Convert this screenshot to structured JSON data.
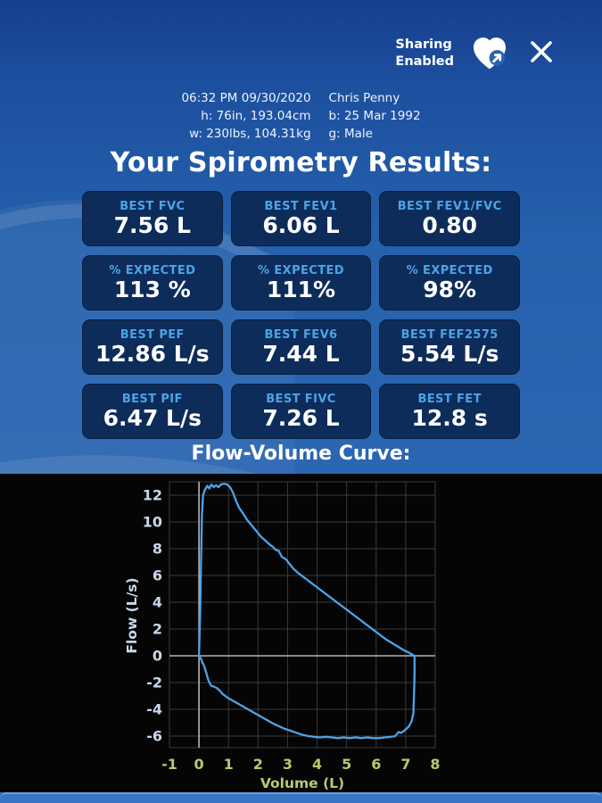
{
  "header": {
    "sharing_line1": "Sharing",
    "sharing_line2": "Enabled"
  },
  "patient": {
    "datetime": "06:32 PM 09/30/2020",
    "height": "h: 76in, 193.04cm",
    "weight": "w: 230lbs, 104.31kg",
    "name": "Chris Penny",
    "birth": "b: 25 Mar 1992",
    "gender": "g: Male"
  },
  "title": "Your Spirometry Results:",
  "results": [
    {
      "label": "BEST FVC",
      "value": "7.56 L"
    },
    {
      "label": "BEST FEV1",
      "value": "6.06 L"
    },
    {
      "label": "BEST FEV1/FVC",
      "value": "0.80"
    },
    {
      "label": "% EXPECTED",
      "value": "113 %"
    },
    {
      "label": "% EXPECTED",
      "value": "111%"
    },
    {
      "label": "% EXPECTED",
      "value": "98%"
    },
    {
      "label": "BEST PEF",
      "value": "12.86 L/s"
    },
    {
      "label": "BEST FEV6",
      "value": "7.44 L"
    },
    {
      "label": "BEST FEF2575",
      "value": "5.54 L/s"
    },
    {
      "label": "BEST PIF",
      "value": "6.47 L/s"
    },
    {
      "label": "BEST FIVC",
      "value": "7.26 L"
    },
    {
      "label": "BEST FET",
      "value": "12.8 s"
    }
  ],
  "chart_section_title": "Flow-Volume Curve:",
  "colors": {
    "background_blue": "#2b67b2",
    "card_background": "#0d2c5a",
    "card_label_blue": "#4aa4e9",
    "white": "#ffffff"
  },
  "chart_data": {
    "type": "line",
    "title": "Flow-Volume Curve",
    "xlabel": "Volume (L)",
    "ylabel": "Flow (L/s)",
    "xlim": [
      -1,
      8
    ],
    "ylim": [
      -6.9,
      13.1
    ],
    "xticks": [
      -1,
      0,
      1,
      2,
      3,
      4,
      5,
      6,
      7,
      8
    ],
    "yticks": [
      12,
      10,
      8,
      6,
      4,
      2,
      0,
      -2,
      -4,
      -6
    ],
    "grid": true,
    "legend": "none",
    "colors": {
      "background": "#050505",
      "grid": "#3a3a3a",
      "zero_axis": "#b5b5b5",
      "curve": "#4da3e8",
      "x_ticks": "#b5cb6e",
      "y_ticks": "#c8d7ec"
    },
    "series": [
      {
        "name": "flow-volume-loop",
        "points": [
          [
            0,
            0
          ],
          [
            0.04,
            3
          ],
          [
            0.07,
            7
          ],
          [
            0.1,
            10.5
          ],
          [
            0.14,
            12.0
          ],
          [
            0.2,
            12.4
          ],
          [
            0.28,
            12.7
          ],
          [
            0.35,
            12.5
          ],
          [
            0.42,
            12.8
          ],
          [
            0.5,
            12.6
          ],
          [
            0.58,
            12.75
          ],
          [
            0.66,
            12.6
          ],
          [
            0.74,
            12.8
          ],
          [
            0.85,
            12.86
          ],
          [
            0.95,
            12.8
          ],
          [
            1.05,
            12.6
          ],
          [
            1.15,
            12.2
          ],
          [
            1.25,
            11.6
          ],
          [
            1.35,
            11.1
          ],
          [
            1.5,
            10.6
          ],
          [
            1.65,
            10.1
          ],
          [
            1.8,
            9.7
          ],
          [
            1.95,
            9.3
          ],
          [
            2.1,
            8.9
          ],
          [
            2.25,
            8.6
          ],
          [
            2.4,
            8.3
          ],
          [
            2.5,
            8.15
          ],
          [
            2.6,
            7.9
          ],
          [
            2.7,
            7.85
          ],
          [
            2.8,
            7.4
          ],
          [
            2.95,
            7.2
          ],
          [
            3.05,
            6.9
          ],
          [
            3.2,
            6.5
          ],
          [
            3.35,
            6.2
          ],
          [
            3.5,
            5.95
          ],
          [
            3.65,
            5.7
          ],
          [
            3.8,
            5.45
          ],
          [
            3.95,
            5.2
          ],
          [
            4.1,
            4.95
          ],
          [
            4.25,
            4.7
          ],
          [
            4.4,
            4.45
          ],
          [
            4.55,
            4.2
          ],
          [
            4.7,
            3.95
          ],
          [
            4.85,
            3.7
          ],
          [
            5.0,
            3.45
          ],
          [
            5.15,
            3.2
          ],
          [
            5.3,
            2.95
          ],
          [
            5.45,
            2.7
          ],
          [
            5.6,
            2.45
          ],
          [
            5.75,
            2.2
          ],
          [
            5.9,
            1.95
          ],
          [
            6.05,
            1.7
          ],
          [
            6.2,
            1.45
          ],
          [
            6.35,
            1.2
          ],
          [
            6.5,
            1.0
          ],
          [
            6.65,
            0.8
          ],
          [
            6.8,
            0.6
          ],
          [
            6.95,
            0.4
          ],
          [
            7.1,
            0.25
          ],
          [
            7.2,
            0.12
          ],
          [
            7.3,
            0
          ],
          [
            7.3,
            -1.5
          ],
          [
            7.28,
            -3.0
          ],
          [
            7.26,
            -4.3
          ],
          [
            7.2,
            -4.9
          ],
          [
            7.1,
            -5.3
          ],
          [
            6.95,
            -5.6
          ],
          [
            6.85,
            -5.75
          ],
          [
            6.75,
            -5.7
          ],
          [
            6.65,
            -6.0
          ],
          [
            6.5,
            -6.05
          ],
          [
            6.3,
            -6.1
          ],
          [
            6.1,
            -6.15
          ],
          [
            5.9,
            -6.15
          ],
          [
            5.7,
            -6.1
          ],
          [
            5.5,
            -6.15
          ],
          [
            5.3,
            -6.1
          ],
          [
            5.1,
            -6.15
          ],
          [
            4.9,
            -6.1
          ],
          [
            4.7,
            -6.15
          ],
          [
            4.5,
            -6.1
          ],
          [
            4.3,
            -6.05
          ],
          [
            4.1,
            -6.1
          ],
          [
            3.9,
            -6.05
          ],
          [
            3.7,
            -6.0
          ],
          [
            3.5,
            -5.9
          ],
          [
            3.3,
            -5.75
          ],
          [
            3.1,
            -5.6
          ],
          [
            2.9,
            -5.45
          ],
          [
            2.7,
            -5.25
          ],
          [
            2.5,
            -5.05
          ],
          [
            2.3,
            -4.8
          ],
          [
            2.1,
            -4.55
          ],
          [
            1.9,
            -4.3
          ],
          [
            1.7,
            -4.05
          ],
          [
            1.5,
            -3.8
          ],
          [
            1.3,
            -3.55
          ],
          [
            1.1,
            -3.3
          ],
          [
            0.95,
            -3.1
          ],
          [
            0.8,
            -2.85
          ],
          [
            0.7,
            -2.6
          ],
          [
            0.6,
            -2.4
          ],
          [
            0.5,
            -2.3
          ],
          [
            0.42,
            -2.25
          ],
          [
            0.35,
            -2.0
          ],
          [
            0.3,
            -1.7
          ],
          [
            0.25,
            -1.3
          ],
          [
            0.18,
            -0.8
          ],
          [
            0.1,
            -0.4
          ],
          [
            0.05,
            -0.15
          ],
          [
            0,
            0
          ]
        ]
      }
    ]
  }
}
